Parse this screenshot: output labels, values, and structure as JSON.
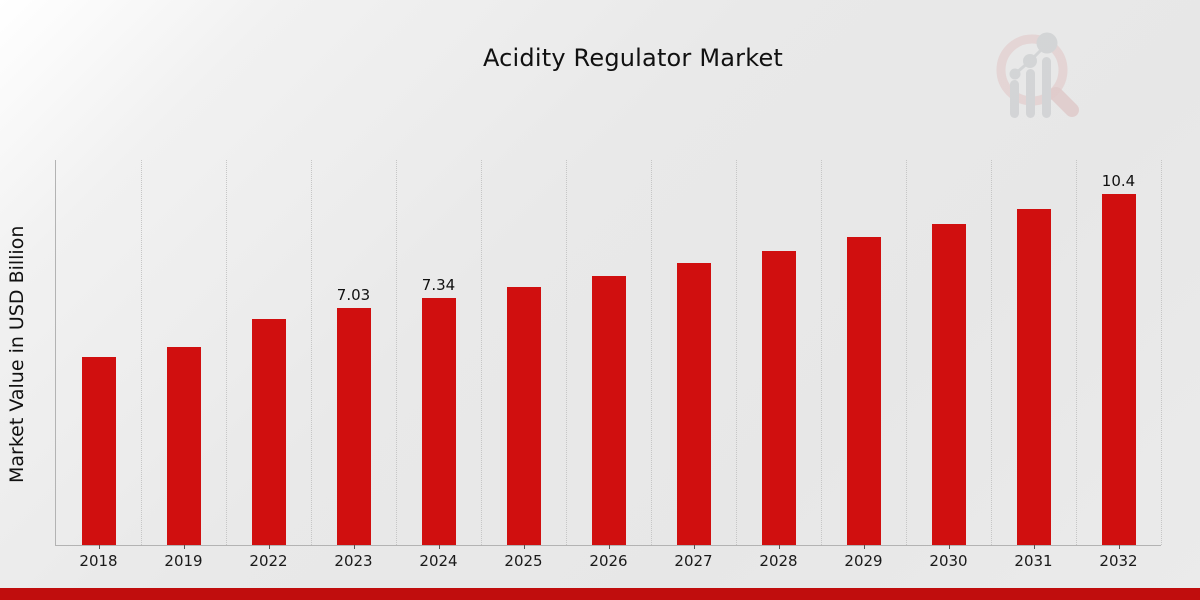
{
  "chart_data": {
    "type": "bar",
    "title": "Acidity Regulator Market",
    "xlabel": "",
    "ylabel": "Market Value in USD Billion",
    "categories": [
      "2018",
      "2019",
      "2022",
      "2023",
      "2024",
      "2025",
      "2026",
      "2027",
      "2028",
      "2029",
      "2030",
      "2031",
      "2032"
    ],
    "values": [
      5.58,
      5.88,
      6.71,
      7.03,
      7.34,
      7.66,
      7.98,
      8.37,
      8.72,
      9.14,
      9.53,
      9.97,
      10.4
    ],
    "data_labels": {
      "2023": "7.03",
      "2024": "7.34",
      "2032": "10.4"
    },
    "ylim": [
      0,
      11.42
    ],
    "grid": "vertical-dotted",
    "legend": "none",
    "bar_color": "#d00f0f",
    "axis_color": "#b3b3b3",
    "gridline_color": "#c6c6c6",
    "text_color": "#111111"
  },
  "footer": {
    "strip_color": "#c00d0d"
  },
  "logo": {
    "name": "magnifier-bar-chart-watermark",
    "ring_color": "#dfbcbc",
    "bars_color": "#c3c6c9"
  }
}
